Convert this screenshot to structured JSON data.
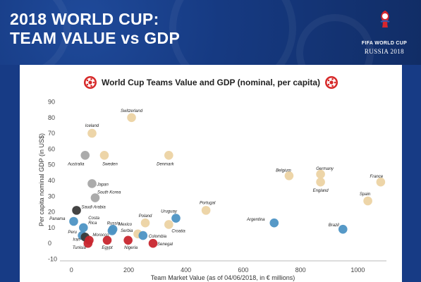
{
  "header": {
    "title_line1": "2018 WORLD CUP:",
    "title_line2": "TEAM VALUE vs GDP"
  },
  "logo": {
    "line1": "FIFA WORLD CUP",
    "line2": "RUSSIA 2018"
  },
  "colors": {
    "banner": "#163a82",
    "europe": "#ecd3a3",
    "asia": "#a6a6a6",
    "americas": "#4d94c4",
    "africa": "#c8262e",
    "dark": "#3a3a3a"
  },
  "chart_data": {
    "type": "scatter",
    "title": "World Cup Teams Value and GDP (nominal, per capita)",
    "xlabel": "Team Market Value (as of 04/06/2018, in € millions)",
    "ylabel": "Per capita nominal GDP (in US$)",
    "xlim": [
      -40,
      1100
    ],
    "ylim": [
      -12,
      92
    ],
    "xticks": [
      0,
      200,
      400,
      600,
      800,
      1000
    ],
    "yticks": [
      -10,
      0,
      10,
      20,
      30,
      40,
      50,
      60,
      70,
      80,
      90
    ],
    "xtick_labels": [
      "0",
      "200",
      "400",
      "600",
      "800",
      "1000"
    ],
    "ytick_labels": [
      "-10",
      "0",
      "10",
      "20",
      "30",
      "40",
      "50",
      "60",
      "70",
      "80",
      "90"
    ],
    "grid": false,
    "points": [
      {
        "label": "Switzerland",
        "x": 210,
        "y": 80,
        "color": "#ecd3a3"
      },
      {
        "label": "Iceland",
        "x": 72,
        "y": 70,
        "color": "#ecd3a3"
      },
      {
        "label": "Australia",
        "x": 48,
        "y": 56,
        "color": "#a6a6a6"
      },
      {
        "label": "Sweden",
        "x": 115,
        "y": 56,
        "color": "#ecd3a3"
      },
      {
        "label": "Denmark",
        "x": 340,
        "y": 56,
        "color": "#ecd3a3"
      },
      {
        "label": "Belgium",
        "x": 760,
        "y": 43,
        "color": "#ecd3a3"
      },
      {
        "label": "Germany",
        "x": 870,
        "y": 44,
        "color": "#ecd3a3"
      },
      {
        "label": "England",
        "x": 870,
        "y": 39,
        "color": "#ecd3a3"
      },
      {
        "label": "France",
        "x": 1080,
        "y": 39,
        "color": "#ecd3a3"
      },
      {
        "label": "Japan",
        "x": 72,
        "y": 38,
        "color": "#a6a6a6"
      },
      {
        "label": "South Korea",
        "x": 83,
        "y": 29,
        "color": "#a6a6a6"
      },
      {
        "label": "Spain",
        "x": 1035,
        "y": 27,
        "color": "#ecd3a3"
      },
      {
        "label": "Portugal",
        "x": 470,
        "y": 21,
        "color": "#ecd3a3"
      },
      {
        "label": "Saudi Arabia",
        "x": 18,
        "y": 21,
        "color": "#3a3a3a"
      },
      {
        "label": "Uruguay",
        "x": 365,
        "y": 16,
        "color": "#4d94c4"
      },
      {
        "label": "Panama",
        "x": 8,
        "y": 14,
        "color": "#4d94c4"
      },
      {
        "label": "Poland",
        "x": 258,
        "y": 13,
        "color": "#ecd3a3"
      },
      {
        "label": "Croatia",
        "x": 340,
        "y": 12,
        "color": "#ecd3a3"
      },
      {
        "label": "Argentina",
        "x": 708,
        "y": 13,
        "color": "#4d94c4"
      },
      {
        "label": "Brazil",
        "x": 948,
        "y": 9,
        "color": "#4d94c4"
      },
      {
        "label": "Costa Rica",
        "x": 42,
        "y": 10,
        "color": "#4d94c4"
      },
      {
        "label": "Russia",
        "x": 142,
        "y": 8,
        "color": "#4d94c4"
      },
      {
        "label": "Mexico",
        "x": 145,
        "y": 9,
        "color": "#4d94c4"
      },
      {
        "label": "Peru",
        "x": 38,
        "y": 5,
        "color": "#4d94c4"
      },
      {
        "label": "Iran",
        "x": 48,
        "y": 4,
        "color": "#3a3a3a"
      },
      {
        "label": "Serbia",
        "x": 232,
        "y": 6,
        "color": "#ecd3a3"
      },
      {
        "label": "Colombia",
        "x": 250,
        "y": 5,
        "color": "#4d94c4"
      },
      {
        "label": "Morocco",
        "x": 62,
        "y": 2,
        "color": "#c8262e"
      },
      {
        "label": "Tunisia",
        "x": 58,
        "y": 0,
        "color": "#c8262e"
      },
      {
        "label": "Egypt",
        "x": 125,
        "y": 2,
        "color": "#c8262e"
      },
      {
        "label": "Nigeria",
        "x": 198,
        "y": 2,
        "color": "#c8262e"
      },
      {
        "label": "Senegal",
        "x": 285,
        "y": 0,
        "color": "#c8262e"
      }
    ]
  }
}
